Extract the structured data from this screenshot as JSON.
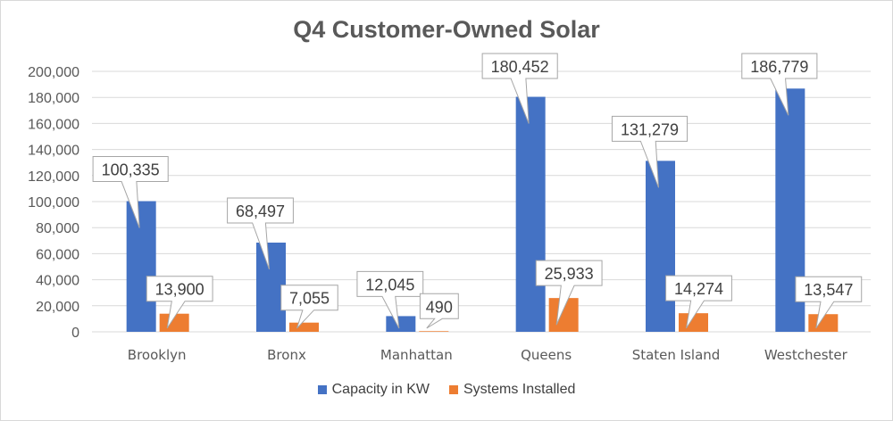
{
  "chart_data": {
    "type": "bar",
    "title": "Q4 Customer-Owned Solar",
    "categories": [
      "Brooklyn",
      "Bronx",
      "Manhattan",
      "Queens",
      "Staten Island",
      "Westchester"
    ],
    "series": [
      {
        "name": "Capacity in KW",
        "color": "#4472c4",
        "values": [
          100335,
          68497,
          12045,
          180452,
          131279,
          186779
        ]
      },
      {
        "name": "Systems Installed",
        "color": "#ed7d31",
        "values": [
          13900,
          7055,
          490,
          25933,
          14274,
          13547
        ]
      }
    ],
    "data_labels": [
      [
        "100,335",
        "68,497",
        "12,045",
        "180,452",
        "131,279",
        "186,779"
      ],
      [
        "13,900",
        "7,055",
        "490",
        "25,933",
        "14,274",
        "13,547"
      ]
    ],
    "ylim": [
      0,
      200000
    ],
    "y_ticks": [
      0,
      20000,
      40000,
      60000,
      80000,
      100000,
      120000,
      140000,
      160000,
      180000,
      200000
    ],
    "y_tick_labels": [
      "0",
      "20,000",
      "40,000",
      "60,000",
      "80,000",
      "100,000",
      "120,000",
      "140,000",
      "160,000",
      "180,000",
      "200,000"
    ],
    "xlabel": "",
    "ylabel": "",
    "grid": true,
    "legend_position": "bottom"
  }
}
